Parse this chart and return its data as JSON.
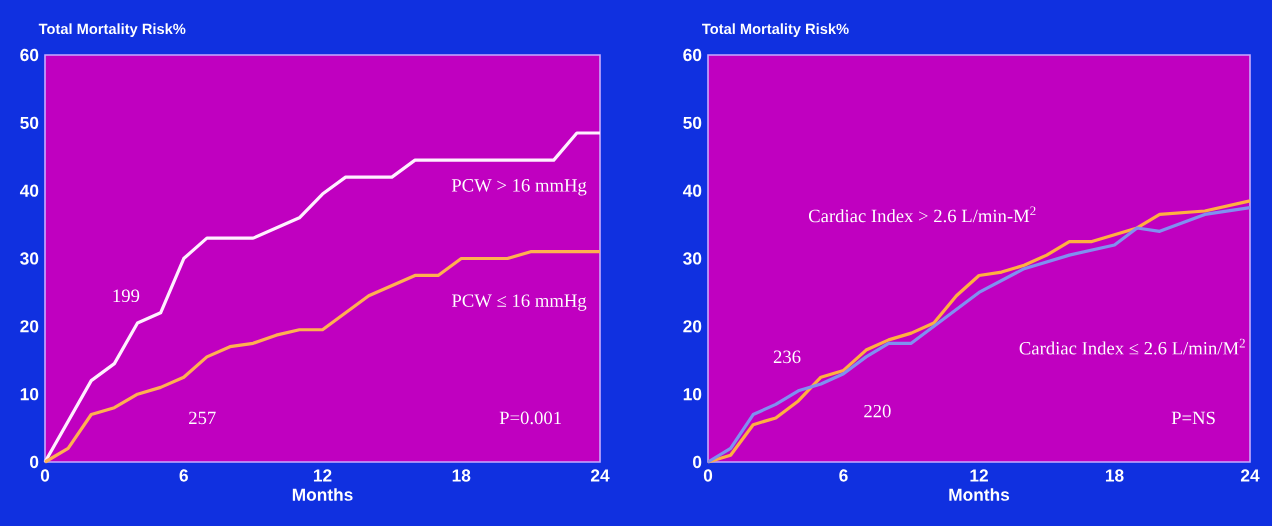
{
  "chart_data": [
    {
      "type": "line",
      "title": "Total Mortality Risk%",
      "xlabel": "Months",
      "xlim": [
        0,
        24
      ],
      "ylim": [
        0,
        60
      ],
      "xticks": [
        0,
        6,
        12,
        18,
        24
      ],
      "yticks": [
        0,
        10,
        20,
        30,
        40,
        50,
        60
      ],
      "series": [
        {
          "name": "PCW > 16 mmHg",
          "color": "#fff0ff",
          "x": [
            0,
            2,
            3,
            4,
            5,
            6,
            7,
            9,
            11,
            12,
            13,
            15,
            16,
            22,
            23,
            24
          ],
          "values": [
            0,
            12,
            14.5,
            20.5,
            22,
            30,
            33,
            33,
            36,
            39.5,
            42,
            42,
            44.5,
            44.5,
            48.5,
            48.5
          ]
        },
        {
          "name": "PCW ≤ 16 mmHg",
          "color": "#ffb050",
          "x": [
            0,
            1,
            2,
            3,
            4,
            5,
            6,
            7,
            8,
            9,
            10,
            11,
            12,
            14,
            16,
            17,
            18,
            20,
            21,
            24
          ],
          "values": [
            0,
            2,
            7,
            8,
            10,
            11,
            12.5,
            15.5,
            17,
            17.5,
            18.7,
            19.5,
            19.5,
            24.5,
            27.5,
            27.5,
            30,
            30,
            31,
            31
          ]
        }
      ],
      "annotations": [
        "199",
        "257",
        "P=0.001"
      ]
    },
    {
      "type": "line",
      "title": "Total Mortality Risk%",
      "xlabel": "Months",
      "xlim": [
        0,
        24
      ],
      "ylim": [
        0,
        60
      ],
      "xticks": [
        0,
        6,
        12,
        18,
        24
      ],
      "yticks": [
        0,
        10,
        20,
        30,
        40,
        50,
        60
      ],
      "series": [
        {
          "color": "#ffb040",
          "x": [
            0,
            1,
            2,
            3,
            4,
            5,
            6,
            7,
            8,
            9,
            10,
            11,
            12,
            13,
            14,
            15,
            16,
            17,
            18,
            19,
            20,
            22,
            24
          ],
          "values": [
            0,
            1,
            5.5,
            6.5,
            9,
            12.5,
            13.5,
            16.5,
            18,
            19,
            20.5,
            24.5,
            27.5,
            28,
            29,
            30.5,
            32.5,
            32.5,
            33.5,
            34.5,
            36.5,
            37,
            38.5
          ]
        },
        {
          "color": "#8090f0",
          "x": [
            0,
            1,
            2,
            3,
            4,
            5,
            6,
            7,
            8,
            9,
            10,
            12,
            14,
            16,
            18,
            19,
            20,
            22,
            24
          ],
          "values": [
            0,
            2,
            7,
            8.5,
            10.5,
            11.5,
            13,
            15.5,
            17.5,
            17.5,
            20,
            25,
            28.5,
            30.5,
            32,
            34.5,
            34,
            36.5,
            37.5
          ]
        }
      ],
      "annotations": [
        "Cardiac Index > 2.6 L/min-M$^{2}$",
        "Cardiac Index ≤ 2.6 L/min/M$^{2}$",
        "236",
        "220",
        "P=NS"
      ]
    }
  ]
}
